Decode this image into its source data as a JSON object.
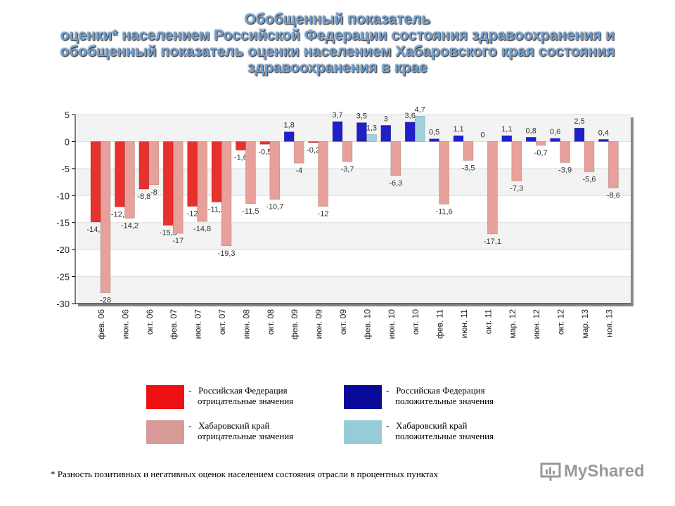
{
  "title": [
    "Обобщенный показатель",
    "оценки* населением Российской Федерации состояния здравоохранения и",
    "обобщенный показатель оценки населением Хабаровского края состояния",
    "здравоохранения в крае"
  ],
  "chart_data": {
    "type": "bar",
    "categories": [
      "фев. 06",
      "июн. 06",
      "окт. 06",
      "фев. 07",
      "июн. 07",
      "окт. 07",
      "июн. 08",
      "окт. 08",
      "фев. 09",
      "июн. 09",
      "окт. 09",
      "фев. 10",
      "июн. 10",
      "окт. 10",
      "фев. 11",
      "июн. 11",
      "окт. 11",
      "мар. 12",
      "июн. 12",
      "окт. 12",
      "мар. 13",
      "ноя. 13"
    ],
    "series": [
      {
        "name": "Российская Федерация",
        "values": [
          -14.9,
          -12.1,
          -8.8,
          -15.5,
          -12,
          -11.2,
          -1.6,
          -0.5,
          1.8,
          -0.2,
          3.7,
          3.5,
          3,
          3.6,
          0.5,
          1.1,
          0,
          1.1,
          0.8,
          0.6,
          2.5,
          0.4
        ],
        "labels": [
          "-14,9",
          "-12,1",
          "-8,8",
          "-15,5",
          "-12",
          "-11,2",
          "-1,6",
          "-0,5",
          "1,8",
          "-0,2",
          "3,7",
          "3,5",
          "3",
          "3,6",
          "0,5",
          "1,1",
          "0",
          "1,1",
          "0,8",
          "0,6",
          "2,5",
          "0,4"
        ],
        "neg_color": "#e8302c",
        "pos_color": "#2020c8"
      },
      {
        "name": "Хабаровский край",
        "values": [
          -28,
          -14.2,
          -8,
          -17,
          -14.8,
          -19.3,
          -11.5,
          -10.7,
          -4,
          -12,
          -3.7,
          1.3,
          -6.3,
          4.7,
          -11.6,
          -3.5,
          -17.1,
          -7.3,
          -0.7,
          -3.9,
          -5.6,
          -8.6
        ],
        "labels": [
          "-28",
          "-14,2",
          "-8",
          "-17",
          "-14,8",
          "-19,3",
          "-11,5",
          "-10,7",
          "-4",
          "-12",
          "-3,7",
          "1,3",
          "-6,3",
          "4,7",
          "-11,6",
          "-3,5",
          "-17,1",
          "-7,3",
          "-0,7",
          "-3,9",
          "-5,6",
          "-8,6"
        ],
        "neg_color": "#e8a09a",
        "pos_color": "#9fd0de"
      }
    ],
    "yticks": [
      5,
      0,
      -5,
      -10,
      -15,
      -20,
      -25,
      -30
    ],
    "ylim": [
      -30,
      5
    ],
    "grid": true
  },
  "legend": [
    {
      "dash": "-",
      "line1": "Российская Федерация",
      "line2": "отрицательные значения",
      "color": "#ee1111"
    },
    {
      "dash": "-",
      "line1": "Российская Федерация",
      "line2": "положительные значения",
      "color": "#0a0a99"
    },
    {
      "dash": "-",
      "line1": "Хабаровский край",
      "line2": "отрицательные значения",
      "color": "#d89a96"
    },
    {
      "dash": "-",
      "line1": "Хабаровский край",
      "line2": "положительные значения",
      "color": "#96ccd8"
    }
  ],
  "footnote": "* Разность позитивных и негативных оценок населением состояния отрасли в процентных пунктах",
  "logo": "MyShared"
}
